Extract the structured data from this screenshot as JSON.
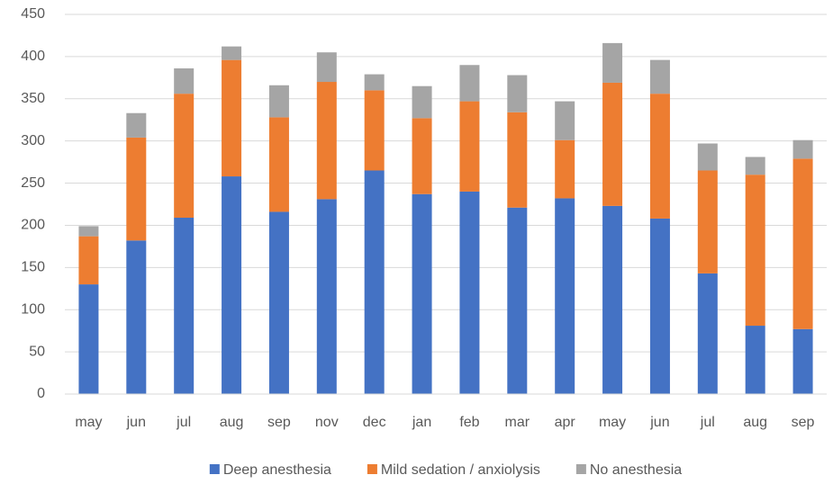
{
  "chart_data": {
    "type": "stacked_bar",
    "categories": [
      "may",
      "jun",
      "jul",
      "aug",
      "sep",
      "nov",
      "dec",
      "jan",
      "feb",
      "mar",
      "apr",
      "may",
      "jun",
      "jul",
      "aug",
      "sep"
    ],
    "series": [
      {
        "name": "Deep anesthesia",
        "color": "#4472c4",
        "values": [
          130,
          182,
          209,
          258,
          216,
          231,
          265,
          237,
          240,
          221,
          232,
          223,
          208,
          143,
          81,
          77
        ]
      },
      {
        "name": "Mild sedation / anxiolysis",
        "color": "#ed7d31",
        "values": [
          57,
          122,
          147,
          138,
          112,
          139,
          95,
          90,
          107,
          113,
          69,
          146,
          148,
          122,
          179,
          202
        ]
      },
      {
        "name": "No anesthesia",
        "color": "#a5a5a5",
        "values": [
          12,
          29,
          30,
          16,
          38,
          35,
          19,
          38,
          43,
          44,
          46,
          47,
          40,
          32,
          21,
          22
        ]
      }
    ],
    "ylim": [
      0,
      450
    ],
    "yticks": [
      0,
      50,
      100,
      150,
      200,
      250,
      300,
      350,
      400,
      450
    ],
    "grid": true,
    "legend": "bottom"
  }
}
